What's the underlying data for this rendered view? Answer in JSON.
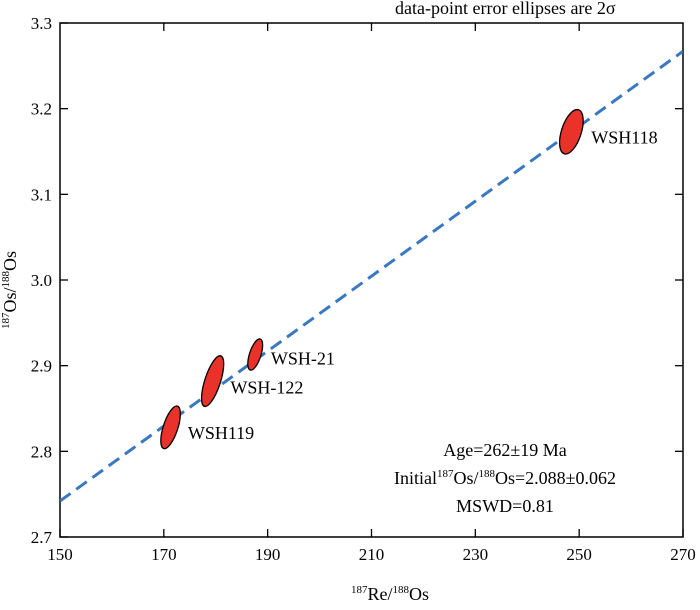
{
  "chart_data": {
    "type": "scatter",
    "subtype": "isochron with error ellipses",
    "title": "",
    "note": "data-point error ellipses are 2σ",
    "xlabel": {
      "sup": "187",
      "base1": "Re/",
      "sup2": "188",
      "base2": "Os"
    },
    "ylabel": {
      "sup": "187",
      "base1": "Os/",
      "sup2": "188",
      "base2": "Os"
    },
    "xlim": [
      150,
      270
    ],
    "ylim": [
      2.7,
      3.3
    ],
    "xticks": [
      150,
      170,
      190,
      210,
      230,
      250,
      270
    ],
    "xtick_labels": [
      "150",
      "170",
      "190",
      "210",
      "230",
      "250",
      "270"
    ],
    "yticks": [
      2.7,
      2.8,
      2.9,
      3.0,
      3.1,
      3.2,
      3.3
    ],
    "ytick_labels": [
      "2.7",
      "2.8",
      "2.9",
      "3.0",
      "3.1",
      "3.2",
      "3.3"
    ],
    "points": [
      {
        "label": "WSH119",
        "x": 171.3,
        "y": 2.828,
        "x_err": 1.4,
        "y_err": 0.026
      },
      {
        "label": "WSH-122",
        "x": 179.4,
        "y": 2.882,
        "x_err": 1.5,
        "y_err": 0.031
      },
      {
        "label": "WSH-21",
        "x": 187.6,
        "y": 2.913,
        "x_err": 1.1,
        "y_err": 0.019
      },
      {
        "label": "WSH118",
        "x": 248.5,
        "y": 3.173,
        "x_err": 1.9,
        "y_err": 0.027
      }
    ],
    "regression_line": {
      "x": [
        150,
        270
      ],
      "y": [
        2.742,
        3.267
      ]
    },
    "annotations": {
      "age": "Age=262±19 Ma",
      "initial_prefix": "Initial",
      "initial_sup1": "187",
      "initial_mid": "Os/",
      "initial_sup2": "188",
      "initial_suffix": "Os=2.088±0.062",
      "mswd": "MSWD=0.81"
    },
    "colors": {
      "ellipse_fill": "#e8322a",
      "ellipse_stroke": "#000000",
      "line": "#3a78c0",
      "axes": "#000000"
    }
  }
}
